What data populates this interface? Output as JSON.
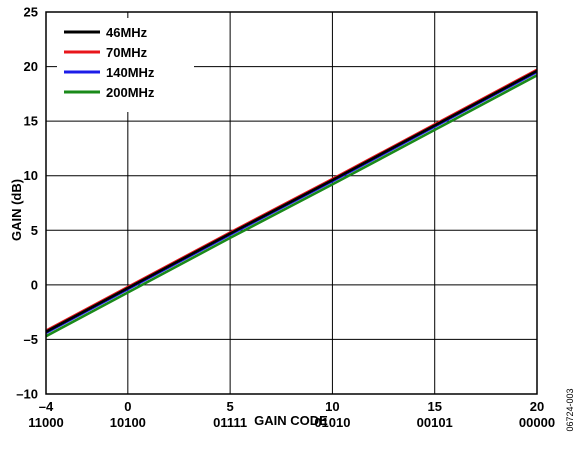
{
  "chart_data": {
    "type": "line",
    "xlabel": "GAIN CODE",
    "ylabel": "GAIN (dB)",
    "xlim": [
      -4,
      20
    ],
    "ylim": [
      -10,
      25
    ],
    "x_ticks": [
      {
        "value": -4,
        "label": "–4",
        "code": "11000"
      },
      {
        "value": 0,
        "label": "0",
        "code": "10100"
      },
      {
        "value": 5,
        "label": "5",
        "code": "01111"
      },
      {
        "value": 10,
        "label": "10",
        "code": "01010"
      },
      {
        "value": 15,
        "label": "15",
        "code": "00101"
      },
      {
        "value": 20,
        "label": "20",
        "code": "00000"
      }
    ],
    "y_ticks": [
      {
        "value": 25,
        "label": "25"
      },
      {
        "value": 20,
        "label": "20"
      },
      {
        "value": 15,
        "label": "15"
      },
      {
        "value": 10,
        "label": "10"
      },
      {
        "value": 5,
        "label": "5"
      },
      {
        "value": 0,
        "label": "0"
      },
      {
        "value": -5,
        "label": "–5"
      },
      {
        "value": -10,
        "label": "–10"
      }
    ],
    "grid": true,
    "legend_position": "top-left",
    "series": [
      {
        "name": "46MHz",
        "color": "#000000",
        "x": [
          -4,
          0,
          5,
          10,
          15,
          20
        ],
        "y": [
          -4.3,
          -0.3,
          4.7,
          9.6,
          14.6,
          19.6
        ]
      },
      {
        "name": "70MHz",
        "color": "#e8161b",
        "x": [
          -4,
          0,
          5,
          10,
          15,
          20
        ],
        "y": [
          -4.2,
          -0.2,
          4.8,
          9.7,
          14.7,
          19.7
        ]
      },
      {
        "name": "140MHz",
        "color": "#1c1ce8",
        "x": [
          -4,
          0,
          5,
          10,
          15,
          20
        ],
        "y": [
          -4.4,
          -0.4,
          4.6,
          9.5,
          14.5,
          19.5
        ]
      },
      {
        "name": "200MHz",
        "color": "#1a8a1a",
        "x": [
          -4,
          0,
          5,
          10,
          15,
          20
        ],
        "y": [
          -4.7,
          -0.7,
          4.3,
          9.2,
          14.2,
          19.2
        ]
      }
    ]
  },
  "figure_id": "06724-003"
}
